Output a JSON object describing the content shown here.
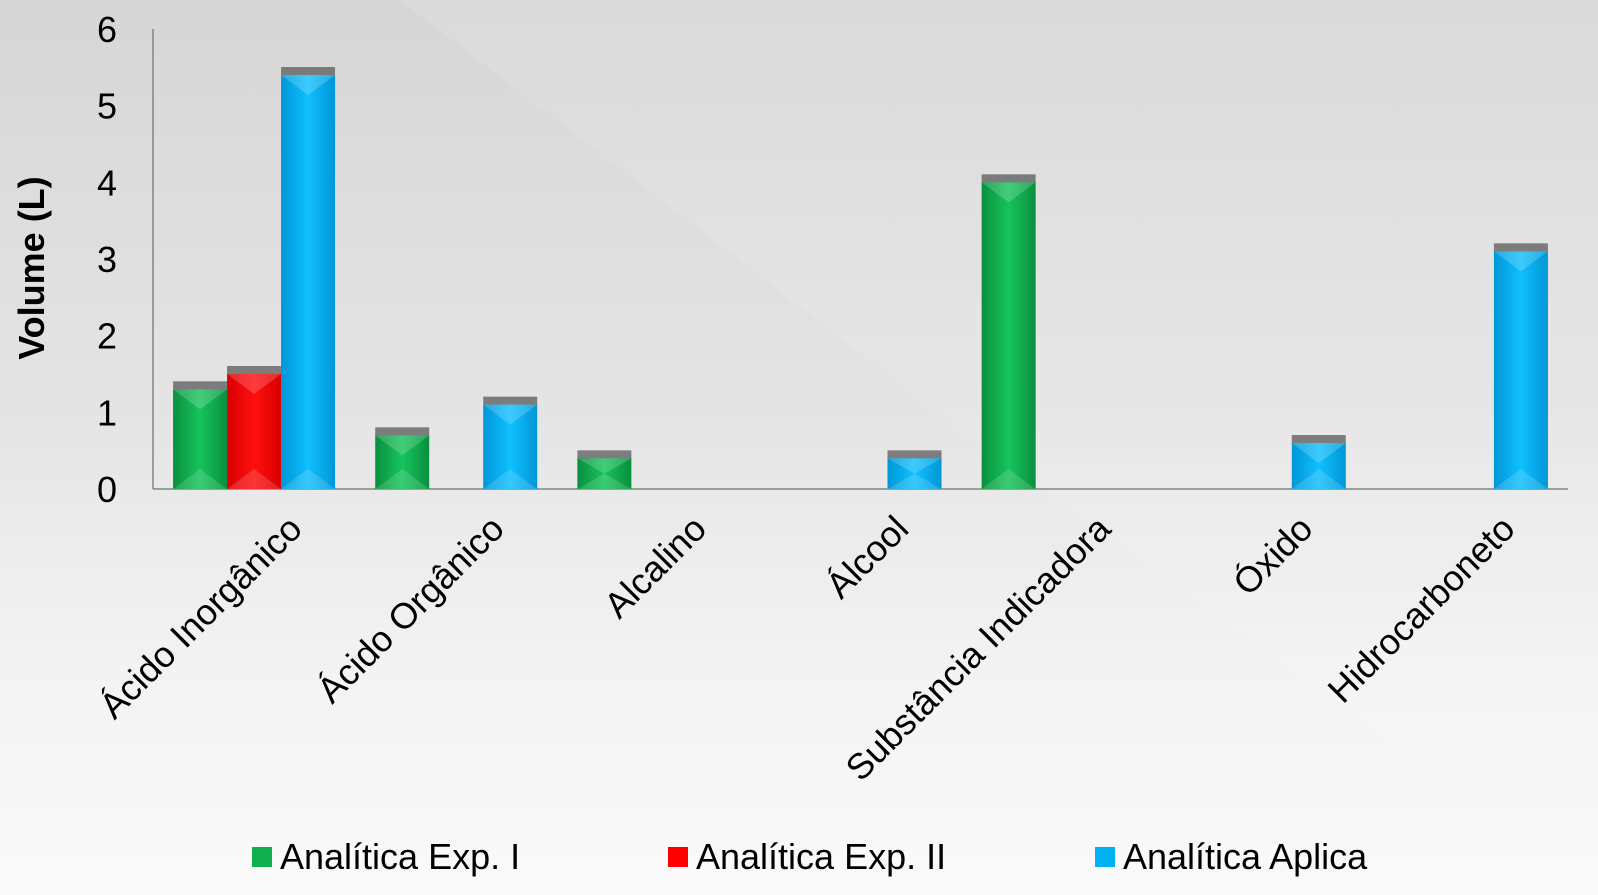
{
  "chart_data": {
    "type": "bar",
    "categories": [
      "Ácido Inorgânico",
      "Ácido Orgânico",
      "Alcalino",
      "Álcool",
      "Substância Indicadora",
      "Óxido",
      "Hidrocarboneto"
    ],
    "series": [
      {
        "name": "Analítica Exp. I",
        "color": "#10b050",
        "values": [
          1.3,
          0.7,
          0.4,
          0,
          4.0,
          0,
          0
        ]
      },
      {
        "name": "Analítica Exp. II",
        "color": "#ff0000",
        "values": [
          1.5,
          0,
          0,
          0,
          0,
          0,
          0
        ]
      },
      {
        "name": "Analítica Aplica",
        "color": "#00b0f0",
        "values": [
          5.4,
          1.1,
          0,
          0.4,
          0,
          0.6,
          3.1
        ]
      }
    ],
    "ylabel": "Volume (L)",
    "xlabel": "",
    "ylim": [
      0,
      6
    ],
    "yticks": [
      "0",
      "1",
      "2",
      "3",
      "4",
      "5",
      "6"
    ],
    "grid": false,
    "legend_position": "bottom"
  }
}
